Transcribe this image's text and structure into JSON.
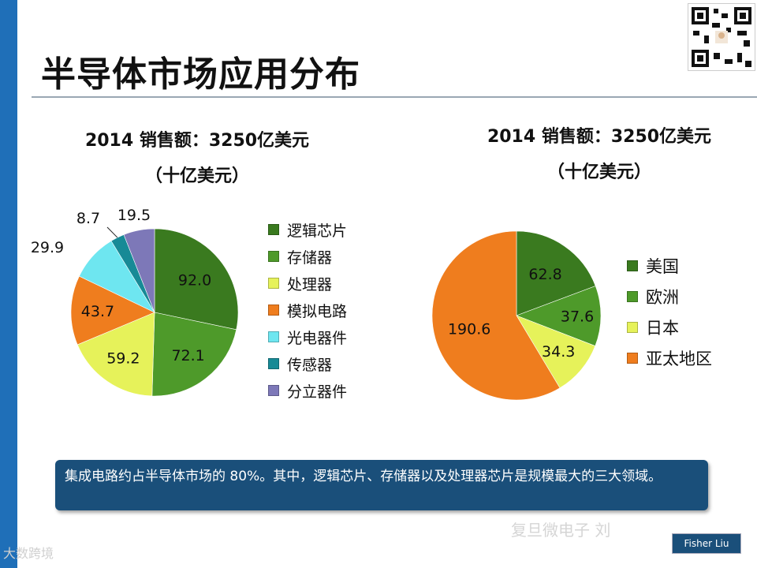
{
  "title": "半导体市场应用分布",
  "note": "集成电路约占半导体市场的 80%。其中，逻辑芯片、存储器以及处理器芯片是规模最大的三大领域。",
  "watermark_left": "大数跨境",
  "watermark_right": "复旦微电子 刘",
  "author_badge": "Fisher Liu",
  "chart_data": [
    {
      "type": "pie",
      "title": "2014 销售额：3250亿美元",
      "subtitle": "（十亿美元）",
      "categories": [
        "逻辑芯片",
        "存储器",
        "处理器",
        "模拟电路",
        "光电器件",
        "传感器",
        "分立器件"
      ],
      "values": [
        92.0,
        72.1,
        59.2,
        43.7,
        29.9,
        8.7,
        19.5
      ],
      "value_labels": [
        "92.0",
        "72.1",
        "59.2",
        "43.7",
        "29.9",
        "8.7",
        "19.5"
      ],
      "colors": [
        "#3a7a1f",
        "#4e9a2a",
        "#e6f25a",
        "#ef7d1e",
        "#6ee6f0",
        "#178a96",
        "#7d78b8"
      ],
      "legend_position": "right"
    },
    {
      "type": "pie",
      "title": "2014 销售额：3250亿美元",
      "subtitle": "（十亿美元）",
      "categories": [
        "美国",
        "欧洲",
        "日本",
        "亚太地区"
      ],
      "values": [
        62.8,
        37.6,
        34.3,
        190.6
      ],
      "value_labels": [
        "62.8",
        "37.6",
        "34.3",
        "190.6"
      ],
      "colors": [
        "#3a7a1f",
        "#4e9a2a",
        "#e6f25a",
        "#ef7d1e"
      ],
      "legend_position": "right"
    }
  ]
}
